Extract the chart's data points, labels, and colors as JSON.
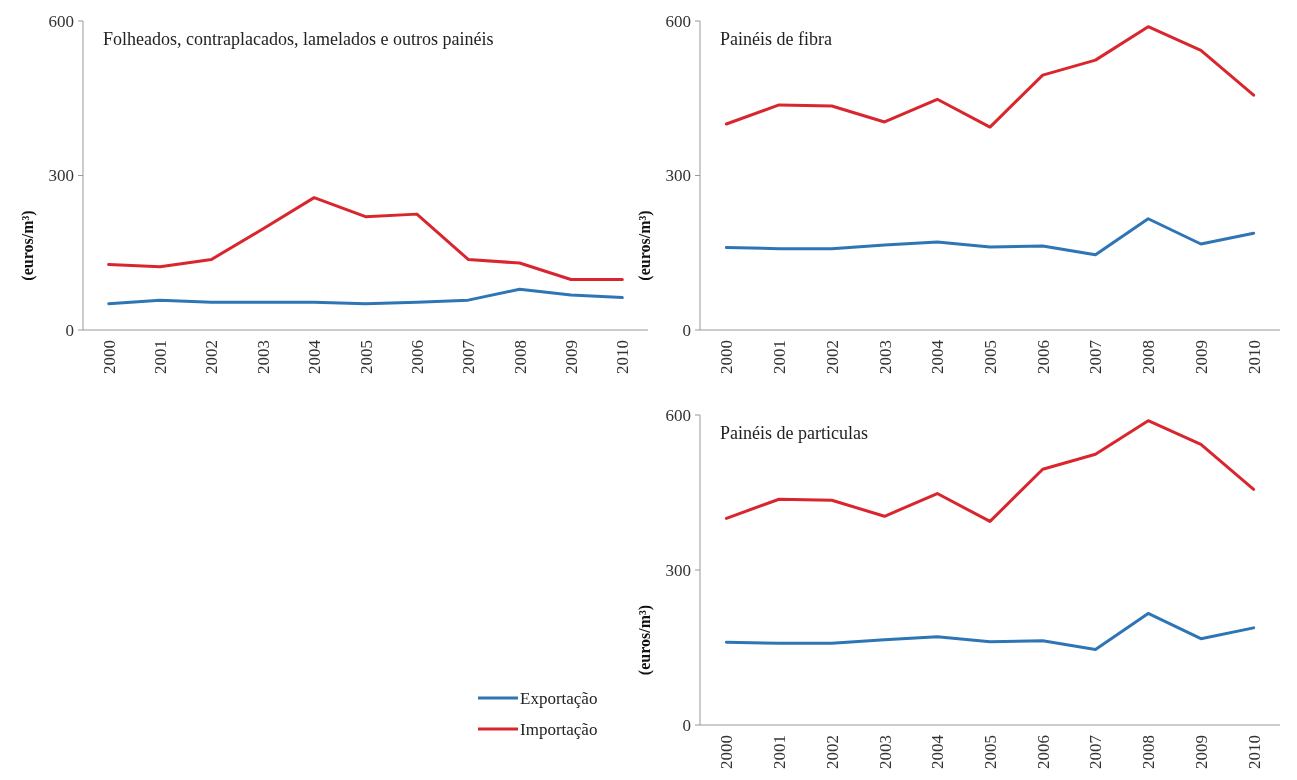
{
  "chart_data": [
    {
      "type": "line",
      "title": "Folheados, contraplacados, lamelados e outros painéis",
      "ylabel": "(euros/m³)",
      "categories": [
        "2000",
        "2001",
        "2002",
        "2003",
        "2004",
        "2005",
        "2006",
        "2007",
        "2008",
        "2009",
        "2010"
      ],
      "ylim": [
        0,
        600
      ],
      "yticks": [
        0,
        300,
        600
      ],
      "legend": "bottom right",
      "series": [
        {
          "name": "Exportação",
          "color": "#2e75b6",
          "values": [
            51,
            58,
            54,
            54,
            54,
            51,
            54,
            58,
            79,
            68,
            63
          ]
        },
        {
          "name": "Importação",
          "color": "#d9262e",
          "values": [
            127,
            123,
            137,
            196,
            257,
            220,
            225,
            137,
            130,
            98,
            98
          ]
        }
      ]
    },
    {
      "type": "line",
      "title": "Painéis de fibra",
      "ylabel": "(euros/m³)",
      "categories": [
        "2000",
        "2001",
        "2002",
        "2003",
        "2004",
        "2005",
        "2006",
        "2007",
        "2008",
        "2009",
        "2010"
      ],
      "ylim": [
        0,
        600
      ],
      "yticks": [
        0,
        300,
        600
      ],
      "series": [
        {
          "color": "#2e75b6",
          "values": [
            160,
            158,
            158,
            165,
            171,
            161,
            163,
            146,
            216,
            167,
            188
          ]
        },
        {
          "color": "#d9262e",
          "values": [
            400,
            437,
            435,
            404,
            448,
            394,
            495,
            524,
            589,
            543,
            456
          ]
        }
      ]
    },
    {
      "type": "line",
      "title": "Painéis de particulas",
      "ylabel": "(euros/m³)",
      "categories": [
        "2000",
        "2001",
        "2002",
        "2003",
        "2004",
        "2005",
        "2006",
        "2007",
        "2008",
        "2009",
        "2010"
      ],
      "ylim": [
        0,
        600
      ],
      "yticks": [
        0,
        300,
        600
      ],
      "series": [
        {
          "color": "#2e75b6",
          "values": [
            160,
            158,
            158,
            165,
            171,
            161,
            163,
            146,
            216,
            167,
            188
          ]
        },
        {
          "color": "#d9262e",
          "values": [
            400,
            437,
            435,
            404,
            448,
            394,
            495,
            524,
            589,
            543,
            456
          ]
        }
      ]
    }
  ]
}
